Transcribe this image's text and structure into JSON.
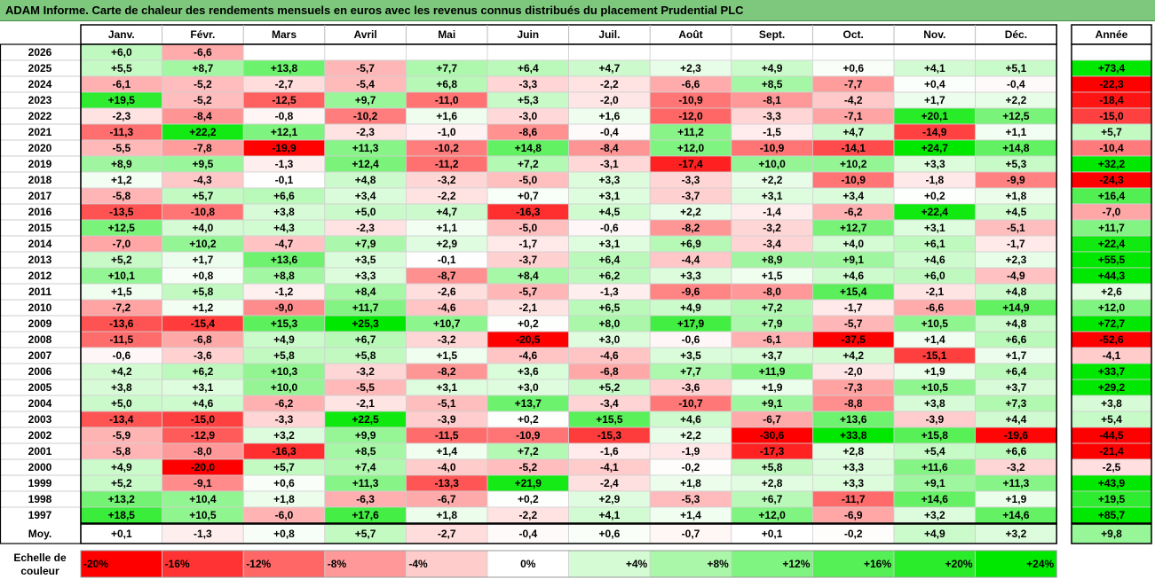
{
  "title": "ADAM Informe. Carte de chaleur des rendements mensuels en euros avec les revenus connus distribués du placement Prudential PLC",
  "chart_data": {
    "type": "heatmap",
    "months": [
      "Janv.",
      "Févr.",
      "Mars",
      "Avril",
      "Mai",
      "Juin",
      "Juil.",
      "Août",
      "Sept.",
      "Oct.",
      "Nov.",
      "Déc."
    ],
    "year_header": "Année",
    "avg_label": "Moy.",
    "scale_label": "Echelle de couleur",
    "rows": [
      {
        "year": "2026",
        "values": [
          6.0,
          -6.6,
          null,
          null,
          null,
          null,
          null,
          null,
          null,
          null,
          null,
          null
        ],
        "annual": null
      },
      {
        "year": "2025",
        "values": [
          5.5,
          8.7,
          13.8,
          -5.7,
          7.7,
          6.4,
          4.7,
          2.3,
          4.9,
          0.6,
          4.1,
          5.1
        ],
        "annual": 73.4
      },
      {
        "year": "2024",
        "values": [
          -6.1,
          -5.2,
          -2.7,
          -5.4,
          6.8,
          -3.3,
          -2.2,
          -6.6,
          8.5,
          -7.7,
          0.4,
          -0.4
        ],
        "annual": -22.3
      },
      {
        "year": "2023",
        "values": [
          19.5,
          -5.2,
          -12.5,
          9.7,
          -11.0,
          5.3,
          -2.0,
          -10.9,
          -8.1,
          -4.2,
          1.7,
          2.2
        ],
        "annual": -18.4
      },
      {
        "year": "2022",
        "values": [
          -2.3,
          -8.4,
          -0.8,
          -10.2,
          1.6,
          -3.0,
          1.6,
          -12.0,
          -3.3,
          -7.1,
          20.1,
          12.5
        ],
        "annual": -15.0
      },
      {
        "year": "2021",
        "values": [
          -11.3,
          22.2,
          12.1,
          -2.3,
          -1.0,
          -8.6,
          -0.4,
          11.2,
          -1.5,
          4.7,
          -14.9,
          1.1
        ],
        "annual": 5.7
      },
      {
        "year": "2020",
        "values": [
          -5.5,
          -7.8,
          -19.9,
          11.3,
          -10.2,
          14.8,
          -8.4,
          12.0,
          -10.9,
          -14.1,
          24.7,
          14.8
        ],
        "annual": -10.4
      },
      {
        "year": "2019",
        "values": [
          8.9,
          9.5,
          -1.3,
          12.4,
          -11.2,
          7.2,
          -3.1,
          -17.4,
          10.0,
          10.2,
          3.3,
          5.3
        ],
        "annual": 32.2
      },
      {
        "year": "2018",
        "values": [
          1.2,
          -4.3,
          -0.1,
          4.8,
          -3.2,
          -5.0,
          3.3,
          -3.3,
          2.2,
          -10.9,
          -1.8,
          -9.9
        ],
        "annual": -24.3
      },
      {
        "year": "2017",
        "values": [
          -5.8,
          5.7,
          6.6,
          3.4,
          -2.2,
          0.7,
          3.1,
          -3.7,
          3.1,
          3.4,
          0.2,
          1.8
        ],
        "annual": 16.4
      },
      {
        "year": "2016",
        "values": [
          -13.5,
          -10.8,
          3.8,
          5.0,
          4.7,
          -16.3,
          4.5,
          2.2,
          -1.4,
          -6.2,
          22.4,
          4.5
        ],
        "annual": -7.0
      },
      {
        "year": "2015",
        "values": [
          12.5,
          4.0,
          4.3,
          -2.3,
          1.1,
          -5.0,
          -0.6,
          -8.2,
          -3.2,
          12.7,
          3.1,
          -5.1
        ],
        "annual": 11.7
      },
      {
        "year": "2014",
        "values": [
          -7.0,
          10.2,
          -4.7,
          7.9,
          2.9,
          -1.7,
          3.1,
          6.9,
          -3.4,
          4.0,
          6.1,
          -1.7
        ],
        "annual": 22.4
      },
      {
        "year": "2013",
        "values": [
          5.2,
          1.7,
          13.6,
          3.5,
          -0.1,
          -3.7,
          6.4,
          -4.4,
          8.9,
          9.1,
          4.6,
          2.3
        ],
        "annual": 55.5
      },
      {
        "year": "2012",
        "values": [
          10.1,
          0.8,
          8.8,
          3.3,
          -8.7,
          8.4,
          6.2,
          3.3,
          1.5,
          4.6,
          6.0,
          -4.9
        ],
        "annual": 44.3
      },
      {
        "year": "2011",
        "values": [
          1.5,
          5.8,
          -1.2,
          8.4,
          -2.6,
          -5.7,
          -1.3,
          -9.6,
          -8.0,
          15.4,
          -2.1,
          4.8
        ],
        "annual": 2.6
      },
      {
        "year": "2010",
        "values": [
          -7.2,
          1.2,
          -9.0,
          11.7,
          -4.6,
          -2.1,
          6.5,
          4.9,
          7.2,
          -1.7,
          -6.6,
          14.9
        ],
        "annual": 12.0
      },
      {
        "year": "2009",
        "values": [
          -13.6,
          -15.4,
          15.3,
          25.3,
          10.7,
          0.2,
          8.0,
          17.9,
          7.9,
          -5.7,
          10.5,
          4.8
        ],
        "annual": 72.7
      },
      {
        "year": "2008",
        "values": [
          -11.5,
          -6.8,
          4.9,
          6.7,
          -3.2,
          -20.5,
          3.0,
          -0.6,
          -6.1,
          -37.5,
          1.4,
          6.6
        ],
        "annual": -52.6
      },
      {
        "year": "2007",
        "values": [
          -0.6,
          -3.6,
          5.8,
          5.8,
          1.5,
          -4.6,
          -4.6,
          3.5,
          3.7,
          4.2,
          -15.1,
          1.7
        ],
        "annual": -4.1
      },
      {
        "year": "2006",
        "values": [
          4.2,
          6.2,
          10.3,
          -3.2,
          -8.2,
          3.6,
          -6.8,
          7.7,
          11.9,
          -2.0,
          1.9,
          6.4
        ],
        "annual": 33.7
      },
      {
        "year": "2005",
        "values": [
          3.8,
          3.1,
          10.0,
          -5.5,
          3.1,
          3.0,
          5.2,
          -3.6,
          1.9,
          -7.3,
          10.5,
          3.7
        ],
        "annual": 29.2
      },
      {
        "year": "2004",
        "values": [
          5.0,
          4.6,
          -6.2,
          -2.1,
          -5.1,
          13.7,
          -3.4,
          -10.7,
          9.1,
          -8.8,
          3.8,
          7.3
        ],
        "annual": 3.8
      },
      {
        "year": "2003",
        "values": [
          -13.4,
          -15.0,
          -3.3,
          22.5,
          -3.9,
          0.2,
          15.5,
          4.6,
          -6.7,
          13.6,
          -3.9,
          4.4
        ],
        "annual": 5.4
      },
      {
        "year": "2002",
        "values": [
          -5.9,
          -12.9,
          3.2,
          9.9,
          -11.5,
          -10.9,
          -15.3,
          2.2,
          -30.6,
          33.8,
          15.8,
          -19.6
        ],
        "annual": -44.5
      },
      {
        "year": "2001",
        "values": [
          -5.8,
          -8.0,
          -16.3,
          8.5,
          1.4,
          7.2,
          -1.6,
          -1.9,
          -17.3,
          2.8,
          5.4,
          6.6
        ],
        "annual": -21.4
      },
      {
        "year": "2000",
        "values": [
          4.9,
          -20.0,
          5.7,
          7.4,
          -4.0,
          -5.2,
          -4.1,
          -0.2,
          5.8,
          3.3,
          11.6,
          -3.2
        ],
        "annual": -2.5
      },
      {
        "year": "1999",
        "values": [
          5.2,
          -9.1,
          0.6,
          11.3,
          -13.3,
          21.9,
          -2.4,
          1.8,
          2.8,
          3.3,
          9.1,
          11.3
        ],
        "annual": 43.9
      },
      {
        "year": "1998",
        "values": [
          13.2,
          10.4,
          1.8,
          -6.3,
          -6.7,
          0.2,
          2.9,
          -5.3,
          6.7,
          -11.7,
          14.6,
          1.9
        ],
        "annual": 19.5
      },
      {
        "year": "1997",
        "values": [
          18.5,
          10.5,
          -6.0,
          17.6,
          1.8,
          -2.2,
          4.1,
          1.4,
          12.0,
          -6.9,
          3.2,
          14.6
        ],
        "annual": 85.7
      }
    ],
    "averages": [
      0.1,
      -1.3,
      0.8,
      5.7,
      -2.7,
      -0.4,
      0.6,
      -0.7,
      0.1,
      -0.2,
      4.9,
      3.2
    ],
    "avg_annual": 9.8,
    "scale": [
      {
        "label": "-20%",
        "value": -20
      },
      {
        "label": "-16%",
        "value": -16
      },
      {
        "label": "-12%",
        "value": -12
      },
      {
        "label": "-8%",
        "value": -8
      },
      {
        "label": "-4%",
        "value": -4
      },
      {
        "label": "0%",
        "value": 0
      },
      {
        "label": "+4%",
        "value": 4
      },
      {
        "label": "+8%",
        "value": 8
      },
      {
        "label": "+12%",
        "value": 12
      },
      {
        "label": "+16%",
        "value": 16
      },
      {
        "label": "+20%",
        "value": 20
      },
      {
        "label": "+24%",
        "value": 24
      }
    ],
    "colors": {
      "neg_max": "#ff0000",
      "zero": "#ffffff",
      "pos_max": "#00e800"
    }
  }
}
